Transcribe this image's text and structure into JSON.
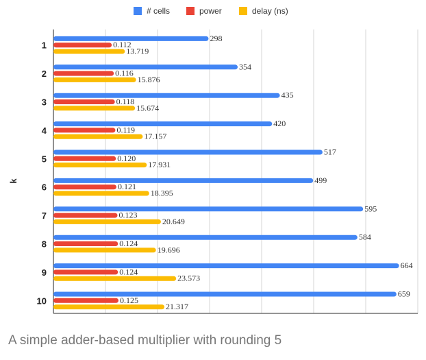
{
  "chart_data": {
    "type": "bar",
    "orientation": "horizontal",
    "title": "A simple adder-based multiplier with rounding 5",
    "ylabel": "k",
    "xlabel": "",
    "categories": [
      "1",
      "2",
      "3",
      "4",
      "5",
      "6",
      "7",
      "8",
      "9",
      "10"
    ],
    "xlim": [
      0,
      700
    ],
    "grid": true,
    "legend_position": "top",
    "series": [
      {
        "name": "# cells",
        "color": "#4285f4",
        "bar_scale": 1,
        "values": [
          298,
          354,
          435,
          420,
          517,
          499,
          595,
          584,
          664,
          659
        ],
        "labels": [
          "298",
          "354",
          "435",
          "420",
          "517",
          "499",
          "595",
          "584",
          "664",
          "659"
        ]
      },
      {
        "name": "power",
        "color": "#ea4335",
        "bar_scale": 1000,
        "values": [
          0.112,
          0.116,
          0.118,
          0.119,
          0.12,
          0.121,
          0.123,
          0.124,
          0.124,
          0.125
        ],
        "labels": [
          "0.112",
          "0.116",
          "0.118",
          "0.119",
          "0.120",
          "0.121",
          "0.123",
          "0.124",
          "0.124",
          "0.125"
        ]
      },
      {
        "name": "delay (ns)",
        "color": "#fbbc04",
        "bar_scale": 10,
        "values": [
          13.719,
          15.876,
          15.674,
          17.157,
          17.931,
          18.395,
          20.649,
          19.696,
          23.573,
          21.317
        ],
        "labels": [
          "13.719",
          "15.876",
          "15.674",
          "17.157",
          "17.931",
          "18.395",
          "20.649",
          "19.696",
          "23.573",
          "21.317"
        ]
      }
    ]
  }
}
